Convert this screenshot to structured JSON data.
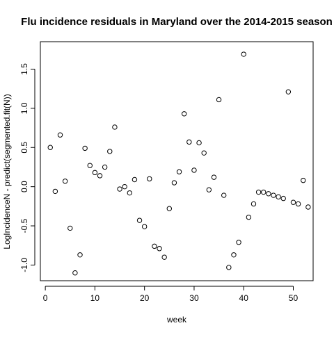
{
  "chart_data": {
    "type": "scatter",
    "title": "Flu incidence residuals in Maryland over the 2014-2015 season",
    "xlabel": "week",
    "ylabel": "LogIncidenceN - predict(segmented.fit(N))",
    "xlim": [
      -1,
      54
    ],
    "ylim": [
      -1.2,
      1.85
    ],
    "x_ticks": [
      0,
      10,
      20,
      30,
      40,
      50
    ],
    "x_tick_labels": [
      "0",
      "10",
      "20",
      "30",
      "40",
      "50"
    ],
    "y_ticks": [
      -1.0,
      -0.5,
      0.0,
      0.5,
      1.0,
      1.5
    ],
    "y_tick_labels": [
      "-1.0",
      "-0.5",
      "0.0",
      "0.5",
      "1.0",
      "1.5"
    ],
    "grid": false,
    "point_shape": "open-circle",
    "points": [
      {
        "x": 1,
        "y": 0.5
      },
      {
        "x": 2,
        "y": -0.06
      },
      {
        "x": 3,
        "y": 0.66
      },
      {
        "x": 4,
        "y": 0.07
      },
      {
        "x": 5,
        "y": -0.53
      },
      {
        "x": 6,
        "y": -1.1
      },
      {
        "x": 7,
        "y": -0.87
      },
      {
        "x": 8,
        "y": 0.49
      },
      {
        "x": 9,
        "y": 0.27
      },
      {
        "x": 10,
        "y": 0.18
      },
      {
        "x": 11,
        "y": 0.14
      },
      {
        "x": 12,
        "y": 0.25
      },
      {
        "x": 13,
        "y": 0.45
      },
      {
        "x": 14,
        "y": 0.76
      },
      {
        "x": 15,
        "y": -0.03
      },
      {
        "x": 16,
        "y": 0.0
      },
      {
        "x": 17,
        "y": -0.08
      },
      {
        "x": 18,
        "y": 0.09
      },
      {
        "x": 19,
        "y": -0.43
      },
      {
        "x": 20,
        "y": -0.51
      },
      {
        "x": 21,
        "y": 0.1
      },
      {
        "x": 22,
        "y": -0.76
      },
      {
        "x": 23,
        "y": -0.79
      },
      {
        "x": 24,
        "y": -0.9
      },
      {
        "x": 25,
        "y": -0.28
      },
      {
        "x": 26,
        "y": 0.05
      },
      {
        "x": 27,
        "y": 0.19
      },
      {
        "x": 28,
        "y": 0.93
      },
      {
        "x": 29,
        "y": 0.57
      },
      {
        "x": 30,
        "y": 0.21
      },
      {
        "x": 31,
        "y": 0.56
      },
      {
        "x": 32,
        "y": 0.43
      },
      {
        "x": 33,
        "y": -0.04
      },
      {
        "x": 34,
        "y": 0.12
      },
      {
        "x": 35,
        "y": 1.11
      },
      {
        "x": 36,
        "y": -0.11
      },
      {
        "x": 37,
        "y": -1.03
      },
      {
        "x": 38,
        "y": -0.87
      },
      {
        "x": 39,
        "y": -0.71
      },
      {
        "x": 40,
        "y": 1.69
      },
      {
        "x": 41,
        "y": -0.39
      },
      {
        "x": 42,
        "y": -0.22
      },
      {
        "x": 43,
        "y": -0.07
      },
      {
        "x": 44,
        "y": -0.07
      },
      {
        "x": 45,
        "y": -0.09
      },
      {
        "x": 46,
        "y": -0.11
      },
      {
        "x": 47,
        "y": -0.13
      },
      {
        "x": 48,
        "y": -0.15
      },
      {
        "x": 49,
        "y": 1.21
      },
      {
        "x": 50,
        "y": -0.2
      },
      {
        "x": 51,
        "y": -0.22
      },
      {
        "x": 52,
        "y": 0.08
      },
      {
        "x": 53,
        "y": -0.26
      }
    ]
  }
}
